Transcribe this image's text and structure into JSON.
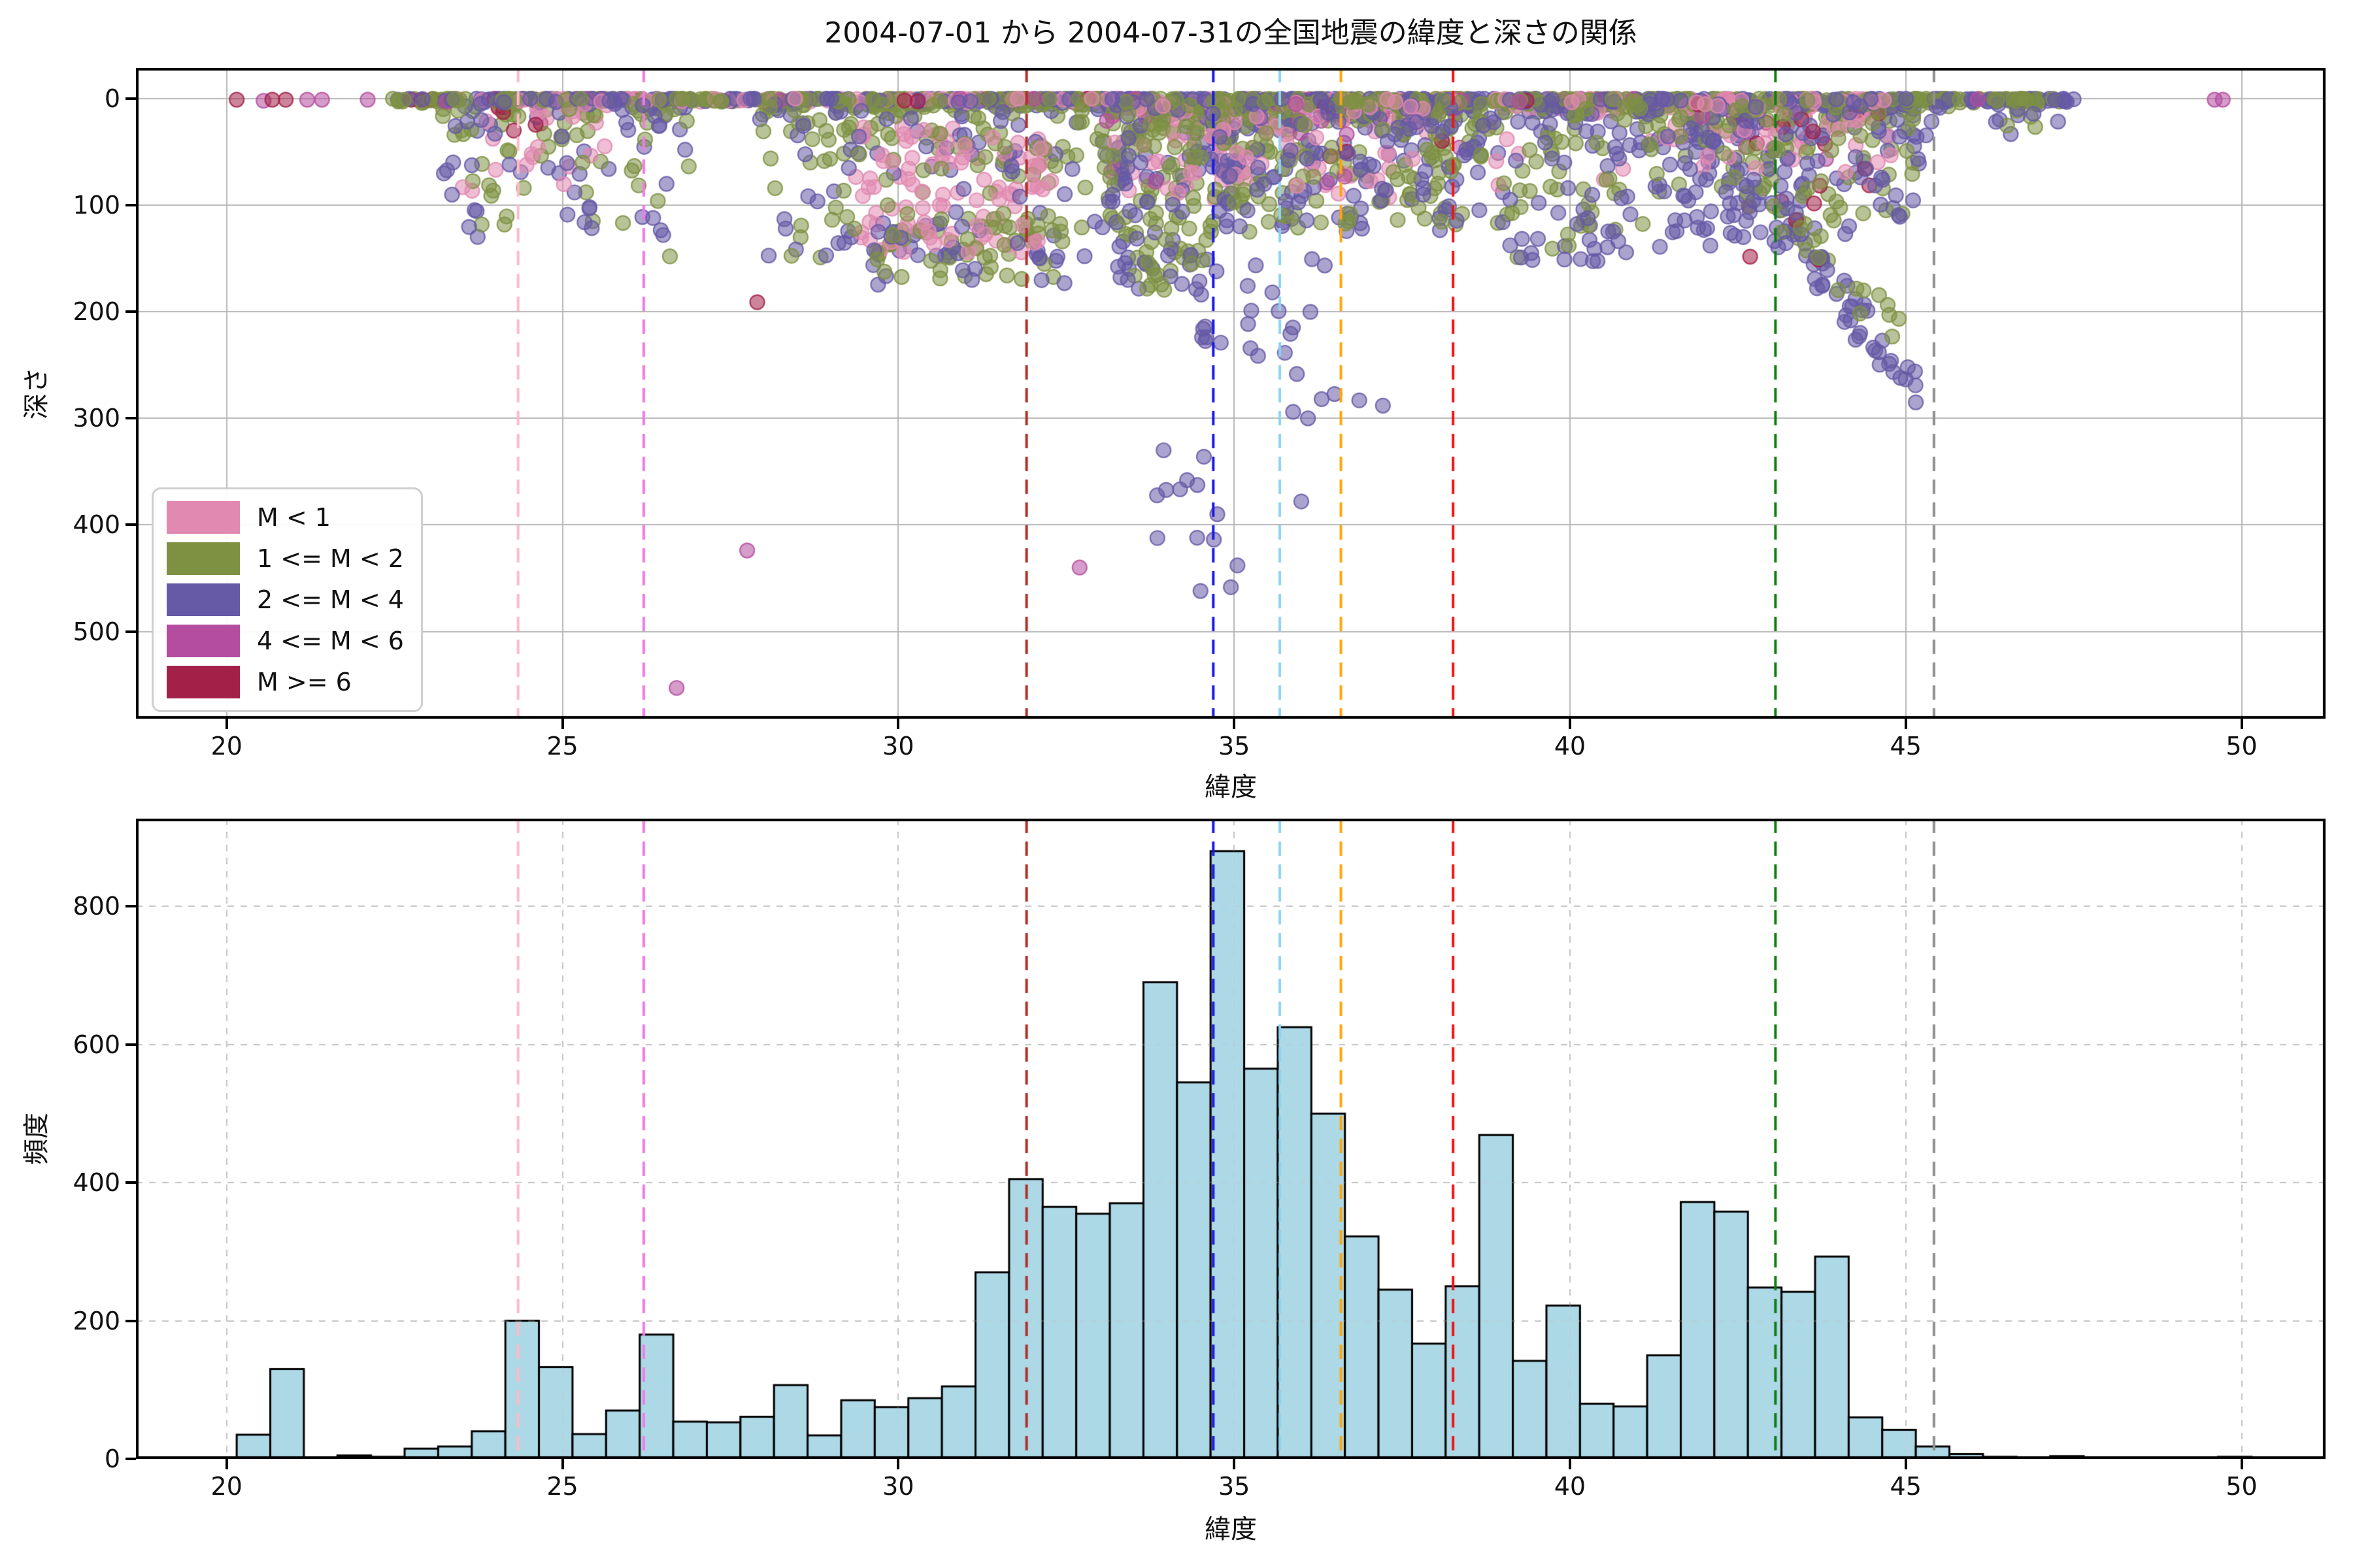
{
  "figure": {
    "title": "2004-07-01 から 2004-07-31の全国地震の緯度と深さの関係",
    "background": "#ffffff"
  },
  "chart_data": [
    {
      "type": "scatter",
      "title": "2004-07-01 から 2004-07-31の全国地震の緯度と深さの関係",
      "xlabel": "緯度",
      "ylabel": "深さ",
      "xlim": [
        18.65,
        51.25
      ],
      "ylim": [
        -28.8,
        581.8
      ],
      "xticks": [
        20,
        25,
        30,
        35,
        40,
        45,
        50
      ],
      "yticks": [
        0,
        100,
        200,
        300,
        400,
        500
      ],
      "grid": {
        "style": "solid",
        "color": "#b6b6b6"
      },
      "y_axis_inverted": true,
      "legend_position": "lower left",
      "legend": [
        {
          "label": "M < 1",
          "color": "#e189b0"
        },
        {
          "label": "1 <= M < 2",
          "color": "#7e9143"
        },
        {
          "label": "2 <= M < 4",
          "color": "#6659a6"
        },
        {
          "label": "4 <= M < 6",
          "color": "#b44d9f"
        },
        {
          "label": "M >= 6",
          "color": "#a32149"
        }
      ],
      "class_colors": {
        "pink": "#e189b0",
        "olive": "#7e9143",
        "purple": "#6659a6",
        "magenta": "#b44d9f",
        "darkred": "#a32149"
      },
      "marker": {
        "radius": 11,
        "alpha": 0.55
      },
      "vlines": [
        {
          "x": 24.34,
          "color": "#ffbac9"
        },
        {
          "x": 26.21,
          "color": "#f07be8"
        },
        {
          "x": 31.91,
          "color": "#b03028"
        },
        {
          "x": 34.69,
          "color": "#1a1ae6"
        },
        {
          "x": 35.68,
          "color": "#90d2ee"
        },
        {
          "x": 36.59,
          "color": "#ffa60a"
        },
        {
          "x": 38.26,
          "color": "#f01414"
        },
        {
          "x": 43.06,
          "color": "#107c10"
        },
        {
          "x": 45.42,
          "color": "#8f8f8f"
        }
      ],
      "clusters": [
        {
          "c": "olive",
          "n": 420,
          "lat": [
            22.4,
            47.3
          ],
          "depth": [
            0,
            4
          ],
          "bias": "top"
        },
        {
          "c": "purple",
          "n": 380,
          "lat": [
            22.4,
            47.5
          ],
          "depth": [
            0,
            4
          ],
          "bias": "top"
        },
        {
          "c": "pink",
          "n": 175,
          "lat": [
            23.0,
            45.5
          ],
          "depth": [
            0,
            4
          ],
          "bias": "top"
        },
        {
          "c": "magenta",
          "n": 34,
          "lat": [
            22.0,
            46.5
          ],
          "depth": [
            0,
            4
          ],
          "bias": "top"
        },
        {
          "c": "darkred",
          "n": 22,
          "lat": [
            22.3,
            44.3
          ],
          "depth": [
            0,
            4
          ],
          "bias": "top"
        },
        {
          "c": "olive",
          "n": 60,
          "lat": [
            23.2,
            26.9
          ],
          "depth": [
            5,
            120
          ],
          "bias": "top"
        },
        {
          "c": "purple",
          "n": 55,
          "lat": [
            23.2,
            26.9
          ],
          "depth": [
            5,
            130
          ],
          "bias": "top"
        },
        {
          "c": "pink",
          "n": 26,
          "lat": [
            23.4,
            26.5
          ],
          "depth": [
            5,
            90
          ],
          "bias": "top"
        },
        {
          "c": "darkred",
          "n": 6,
          "lat": [
            24.0,
            24.75
          ],
          "depth": [
            8,
            60
          ],
          "bias": "top"
        },
        {
          "c": "olive",
          "n": 150,
          "lat": [
            27.9,
            33.0
          ],
          "depth": [
            5,
            150
          ],
          "bias": "top"
        },
        {
          "c": "purple",
          "n": 85,
          "lat": [
            27.9,
            33.0
          ],
          "depth": [
            5,
            150
          ],
          "bias": "top"
        },
        {
          "c": "pink",
          "n": 105,
          "lat": [
            29.3,
            32.3
          ],
          "depth": [
            25,
            145
          ],
          "bias": "uniform"
        },
        {
          "c": "olive",
          "n": 300,
          "lat": [
            33.0,
            38.7
          ],
          "depth": [
            5,
            125
          ],
          "bias": "top"
        },
        {
          "c": "purple",
          "n": 260,
          "lat": [
            33.0,
            38.7
          ],
          "depth": [
            5,
            125
          ],
          "bias": "top"
        },
        {
          "c": "pink",
          "n": 130,
          "lat": [
            33.2,
            38.0
          ],
          "depth": [
            5,
            95
          ],
          "bias": "top"
        },
        {
          "c": "magenta",
          "n": 22,
          "lat": [
            33.0,
            38.5
          ],
          "depth": [
            5,
            80
          ],
          "bias": "top"
        },
        {
          "c": "darkred",
          "n": 9,
          "lat": [
            36.3,
            38.3
          ],
          "depth": [
            5,
            120
          ],
          "bias": "top"
        },
        {
          "c": "olive",
          "n": 65,
          "lat": [
            38.7,
            41.0
          ],
          "depth": [
            5,
            150
          ],
          "bias": "top"
        },
        {
          "c": "purple",
          "n": 60,
          "lat": [
            38.7,
            41.0
          ],
          "depth": [
            5,
            160
          ],
          "bias": "top"
        },
        {
          "c": "pink",
          "n": 18,
          "lat": [
            38.8,
            40.8
          ],
          "depth": [
            5,
            90
          ],
          "bias": "top"
        },
        {
          "c": "olive",
          "n": 140,
          "lat": [
            41.0,
            45.2
          ],
          "depth": [
            5,
            120
          ],
          "bias": "top"
        },
        {
          "c": "purple",
          "n": 150,
          "lat": [
            41.0,
            45.2
          ],
          "depth": [
            5,
            130
          ],
          "bias": "top"
        },
        {
          "c": "pink",
          "n": 55,
          "lat": [
            41.2,
            44.8
          ],
          "depth": [
            5,
            70
          ],
          "bias": "top"
        },
        {
          "c": "darkred",
          "n": 20,
          "lat": [
            41.5,
            44.6
          ],
          "depth": [
            5,
            160
          ],
          "bias": "top"
        },
        {
          "c": "magenta",
          "n": 7,
          "lat": [
            41.5,
            45.0
          ],
          "depth": [
            5,
            60
          ],
          "bias": "top"
        },
        {
          "c": "purple",
          "n": 22,
          "lat": [
            45.3,
            47.4
          ],
          "depth": [
            0,
            40
          ],
          "bias": "top"
        },
        {
          "c": "olive",
          "n": 9,
          "lat": [
            45.4,
            47.0
          ],
          "depth": [
            0,
            30
          ],
          "bias": "top"
        },
        {
          "c": "olive",
          "n": 40,
          "lat": [
            29.6,
            32.5
          ],
          "depth": [
            105,
            170
          ],
          "bias": "uniform"
        },
        {
          "c": "purple",
          "n": 30,
          "lat": [
            29.6,
            32.5
          ],
          "depth": [
            105,
            175
          ],
          "bias": "uniform"
        },
        {
          "c": "olive",
          "n": 25,
          "lat": [
            33.2,
            34.6
          ],
          "depth": [
            125,
            180
          ],
          "bias": "uniform"
        },
        {
          "c": "purple",
          "n": 25,
          "lat": [
            33.2,
            34.6
          ],
          "depth": [
            125,
            180
          ],
          "bias": "uniform"
        },
        {
          "c": "purple",
          "n": 18,
          "lat": [
            34.5,
            36.9
          ],
          "depth": [
            150,
            260
          ],
          "bias": "uniform"
        },
        {
          "c": "purple",
          "n": 12,
          "lat": [
            39.2,
            40.6
          ],
          "depth": [
            100,
            165
          ],
          "bias": "uniform"
        },
        {
          "c": "purple",
          "n": 65,
          "lat": [
            42.0,
            45.15
          ],
          "depth": [
            45,
            268
          ],
          "bias": "slab"
        },
        {
          "c": "olive",
          "n": 28,
          "lat": [
            42.0,
            44.9
          ],
          "depth": [
            40,
            220
          ],
          "bias": "slab"
        },
        {
          "c": "purple",
          "n": 14,
          "lat": [
            41.3,
            42.4
          ],
          "depth": [
            85,
            160
          ],
          "bias": "uniform"
        },
        {
          "c": "darkred",
          "n": 5,
          "lat": [
            42.6,
            43.9
          ],
          "depth": [
            80,
            160
          ],
          "bias": "uniform"
        },
        {
          "c": "purple",
          "n": 7,
          "lat": [
            33.85,
            35.1
          ],
          "depth": [
            330,
            468
          ],
          "bias": "uniform"
        },
        {
          "c": "purple",
          "n": 5,
          "lat": [
            35.6,
            37.35
          ],
          "depth": [
            258,
            300
          ],
          "bias": "uniform"
        },
        {
          "c": "purple",
          "n": 5,
          "lat": [
            34.3,
            34.95
          ],
          "depth": [
            188,
            232
          ],
          "bias": "uniform"
        }
      ],
      "points": [
        [
          20.15,
          1,
          "darkred"
        ],
        [
          20.68,
          1,
          "darkred"
        ],
        [
          20.88,
          1,
          "darkred"
        ],
        [
          20.55,
          2,
          "magenta"
        ],
        [
          21.2,
          1,
          "magenta"
        ],
        [
          21.42,
          1,
          "magenta"
        ],
        [
          22.1,
          1,
          "magenta"
        ],
        [
          22.55,
          1,
          "purple"
        ],
        [
          22.75,
          1,
          "darkred"
        ],
        [
          22.9,
          1,
          "darkred"
        ],
        [
          23.05,
          1,
          "darkred"
        ],
        [
          23.25,
          2,
          "purple"
        ],
        [
          23.35,
          1,
          "purple"
        ],
        [
          49.6,
          1,
          "magenta"
        ],
        [
          49.72,
          1,
          "magenta"
        ],
        [
          26.7,
          553,
          "magenta"
        ],
        [
          27.75,
          424,
          "magenta"
        ],
        [
          32.7,
          440,
          "magenta"
        ],
        [
          27.9,
          191,
          "darkred"
        ],
        [
          26.35,
          112,
          "purple"
        ],
        [
          26.5,
          128,
          "purple"
        ],
        [
          26.6,
          148,
          "olive"
        ],
        [
          26.42,
          96,
          "olive"
        ],
        [
          26.55,
          80,
          "purple"
        ],
        [
          25.4,
          103,
          "purple"
        ],
        [
          25.18,
          88,
          "purple"
        ],
        [
          24.95,
          70,
          "purple"
        ],
        [
          25.3,
          60,
          "olive"
        ],
        [
          44.92,
          262,
          "purple"
        ],
        [
          45.03,
          252,
          "purple"
        ],
        [
          44.78,
          246,
          "purple"
        ],
        [
          44.6,
          238,
          "purple"
        ],
        [
          45.15,
          285,
          "purple"
        ],
        [
          34.3,
          358,
          "purple"
        ],
        [
          34.45,
          412,
          "purple"
        ],
        [
          34.55,
          336,
          "purple"
        ],
        [
          34.5,
          462,
          "purple"
        ],
        [
          35.05,
          438,
          "purple"
        ],
        [
          33.95,
          330,
          "purple"
        ],
        [
          34.75,
          390,
          "purple"
        ],
        [
          36.0,
          378,
          "purple"
        ],
        [
          36.1,
          300,
          "purple"
        ]
      ]
    },
    {
      "type": "bar",
      "xlabel": "緯度",
      "ylabel": "頻度",
      "xlim": [
        18.65,
        51.25
      ],
      "ylim": [
        0,
        927
      ],
      "xticks": [
        20,
        25,
        30,
        35,
        40,
        45,
        50
      ],
      "yticks": [
        0,
        200,
        400,
        600,
        800
      ],
      "grid": {
        "style": "dashed",
        "color": "#c3c3c3"
      },
      "bar_color": "#add8e6",
      "bar_edge_color": "#000000",
      "bin_start": 20.15,
      "bin_width": 0.5,
      "values": [
        35,
        130,
        0,
        5,
        3,
        15,
        18,
        40,
        200,
        133,
        36,
        70,
        180,
        54,
        53,
        61,
        107,
        34,
        85,
        75,
        88,
        105,
        270,
        405,
        365,
        355,
        370,
        690,
        545,
        880,
        565,
        625,
        500,
        322,
        245,
        167,
        250,
        469,
        142,
        222,
        80,
        76,
        150,
        372,
        358,
        248,
        242,
        293,
        60,
        42,
        18,
        7,
        3,
        2,
        4,
        2,
        0,
        0,
        2,
        3
      ],
      "vlines": [
        {
          "x": 24.34,
          "color": "#ffbac9"
        },
        {
          "x": 26.21,
          "color": "#f07be8"
        },
        {
          "x": 31.91,
          "color": "#b03028"
        },
        {
          "x": 34.69,
          "color": "#1a1ae6"
        },
        {
          "x": 35.68,
          "color": "#90d2ee"
        },
        {
          "x": 36.59,
          "color": "#ffa60a"
        },
        {
          "x": 38.26,
          "color": "#f01414"
        },
        {
          "x": 43.06,
          "color": "#107c10"
        },
        {
          "x": 45.42,
          "color": "#8f8f8f"
        }
      ]
    }
  ]
}
